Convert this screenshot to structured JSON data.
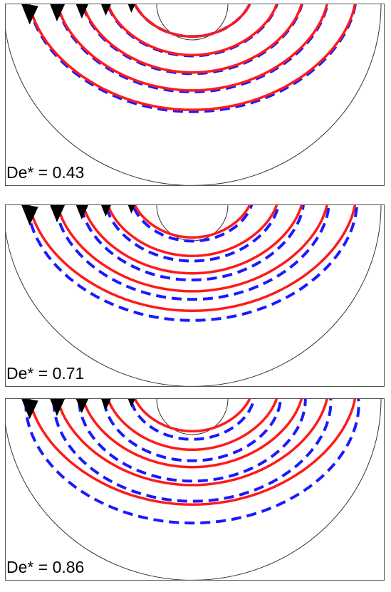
{
  "panels": [
    {
      "label": "De* = 0.43",
      "deviation": [
        0.0,
        0.06,
        0.08,
        0.1,
        0.12
      ]
    },
    {
      "label": "De* = 0.71",
      "deviation": [
        0.25,
        0.35,
        0.45,
        0.55,
        0.65
      ]
    },
    {
      "label": "De* = 0.86",
      "deviation": [
        0.55,
        0.75,
        0.95,
        1.1,
        1.25
      ]
    }
  ],
  "colors": {
    "solid_streamline": "#ff1a1a",
    "dashed_streamline": "#1a1aff",
    "arrow": "#000000",
    "boundary": "#333333"
  }
}
